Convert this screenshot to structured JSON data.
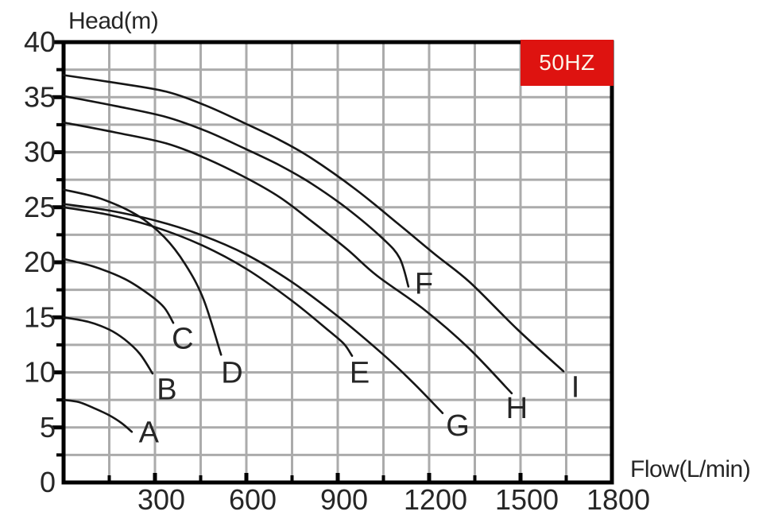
{
  "badge": {
    "label": "50HZ",
    "bg": "#de1310",
    "fg": "#fcf4e8"
  },
  "colors": {
    "curve": "#161616",
    "grid": "#ababab",
    "frame": "#000000",
    "text": "#262626"
  },
  "chart_data": {
    "type": "line",
    "title": "",
    "xlabel": "Flow(L/min)",
    "ylabel": "Head(m)",
    "xlim": [
      0,
      1800
    ],
    "ylim": [
      0,
      40
    ],
    "x_tick_labels": [
      300,
      600,
      900,
      1200,
      1500,
      1800
    ],
    "y_tick_labels": [
      0,
      5,
      10,
      15,
      20,
      25,
      30,
      35,
      40
    ],
    "x_minor_step": 150,
    "y_minor_step": 2.5,
    "grid": true,
    "legend_position": "none",
    "frequency": "50HZ",
    "series": [
      {
        "name": "A",
        "points": [
          [
            0,
            7.5
          ],
          [
            50,
            7.3
          ],
          [
            104,
            6.7
          ],
          [
            150,
            6.1
          ],
          [
            190,
            5.4
          ],
          [
            224,
            4.6
          ]
        ],
        "label_at": [
          280,
          4.6
        ]
      },
      {
        "name": "B",
        "points": [
          [
            0,
            15.0
          ],
          [
            80,
            14.6
          ],
          [
            149,
            13.9
          ],
          [
            200,
            13.0
          ],
          [
            250,
            11.7
          ],
          [
            292,
            9.9
          ]
        ],
        "label_at": [
          339,
          8.5
        ]
      },
      {
        "name": "C",
        "points": [
          [
            0,
            20.3
          ],
          [
            100,
            19.6
          ],
          [
            200,
            18.5
          ],
          [
            280,
            17.1
          ],
          [
            330,
            15.9
          ],
          [
            360,
            14.5
          ]
        ],
        "label_at": [
          391,
          13.1
        ]
      },
      {
        "name": "D",
        "points": [
          [
            0,
            26.6
          ],
          [
            120,
            25.8
          ],
          [
            240,
            24.3
          ],
          [
            330,
            22.3
          ],
          [
            400,
            19.8
          ],
          [
            460,
            16.6
          ],
          [
            517,
            11.6
          ]
        ],
        "label_at": [
          553,
          10.0
        ]
      },
      {
        "name": "E",
        "points": [
          [
            0,
            25.0
          ],
          [
            150,
            24.3
          ],
          [
            300,
            23.2
          ],
          [
            450,
            21.6
          ],
          [
            600,
            19.4
          ],
          [
            750,
            16.5
          ],
          [
            870,
            13.8
          ],
          [
            920,
            12.6
          ],
          [
            947,
            11.5
          ]
        ],
        "label_at": [
          972,
          10.0
        ]
      },
      {
        "name": "F",
        "points": [
          [
            0,
            35.1
          ],
          [
            170,
            34.2
          ],
          [
            337,
            33.2
          ],
          [
            470,
            31.9
          ],
          [
            597,
            30.3
          ],
          [
            710,
            28.8
          ],
          [
            811,
            27.2
          ],
          [
            930,
            24.9
          ],
          [
            1046,
            22.2
          ],
          [
            1103,
            20.4
          ],
          [
            1132,
            17.8
          ]
        ],
        "label_at": [
          1183,
          18.1
        ]
      },
      {
        "name": "G",
        "points": [
          [
            0,
            25.3
          ],
          [
            150,
            24.7
          ],
          [
            300,
            23.8
          ],
          [
            450,
            22.5
          ],
          [
            600,
            20.7
          ],
          [
            750,
            18.2
          ],
          [
            900,
            15.1
          ],
          [
            1050,
            11.6
          ],
          [
            1150,
            9.0
          ],
          [
            1244,
            6.3
          ]
        ],
        "label_at": [
          1294,
          5.2
        ]
      },
      {
        "name": "H",
        "points": [
          [
            0,
            32.7
          ],
          [
            170,
            31.8
          ],
          [
            337,
            30.8
          ],
          [
            470,
            29.4
          ],
          [
            597,
            27.7
          ],
          [
            710,
            25.9
          ],
          [
            811,
            23.8
          ],
          [
            930,
            21.2
          ],
          [
            1028,
            18.8
          ],
          [
            1184,
            15.7
          ],
          [
            1330,
            12.2
          ],
          [
            1471,
            8.1
          ]
        ],
        "label_at": [
          1488,
          6.8
        ]
      },
      {
        "name": "I",
        "points": [
          [
            0,
            37.0
          ],
          [
            170,
            36.3
          ],
          [
            337,
            35.5
          ],
          [
            470,
            34.2
          ],
          [
            597,
            32.6
          ],
          [
            710,
            31.1
          ],
          [
            811,
            29.5
          ],
          [
            960,
            26.6
          ],
          [
            1098,
            23.5
          ],
          [
            1220,
            20.7
          ],
          [
            1333,
            18.2
          ],
          [
            1490,
            13.9
          ],
          [
            1641,
            10.1
          ]
        ],
        "label_at": [
          1680,
          8.7
        ]
      }
    ]
  }
}
